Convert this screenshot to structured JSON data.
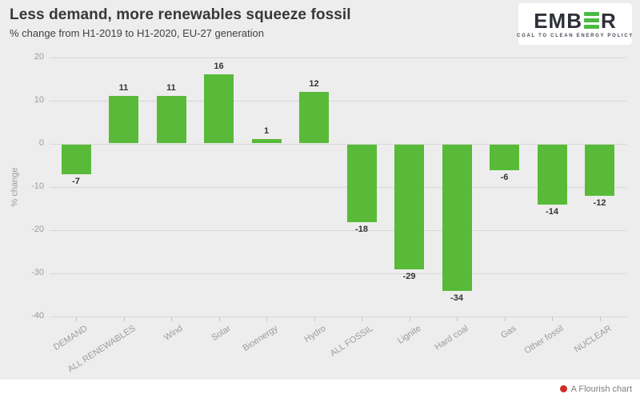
{
  "header": {
    "title": "Less demand, more renewables squeeze fossil",
    "subtitle": "% change from H1-2019 to H1-2020, EU-27 generation",
    "logo": {
      "text_pre": "EMB",
      "text_post": "R",
      "tagline": "COAL TO CLEAN ENERGY POLICY",
      "accent_color": "#4cb944"
    }
  },
  "chart_data": {
    "type": "bar",
    "categories": [
      "DEMAND",
      "ALL RENEWABLES",
      "Wind",
      "Solar",
      "Bioenergy",
      "Hydro",
      "ALL FOSSIL",
      "Lignite",
      "Hard coal",
      "Gas",
      "Other fossil",
      "NUCLEAR"
    ],
    "values": [
      -7,
      11,
      11,
      16,
      1,
      12,
      -18,
      -29,
      -34,
      -6,
      -14,
      -12
    ],
    "title": "Less demand, more renewables squeeze fossil",
    "subtitle": "% change from H1-2019 to H1-2020, EU-27 generation",
    "xlabel": "",
    "ylabel": "% change",
    "ylim": [
      -40,
      20
    ],
    "yticks": [
      20,
      10,
      0,
      -10,
      -20,
      -30,
      -40
    ],
    "grid": true,
    "legend": false,
    "data_labels": true,
    "bar_color": "#58ba38"
  },
  "footer": {
    "attribution": "A Flourish chart",
    "dot_color": "#cf2d23"
  }
}
